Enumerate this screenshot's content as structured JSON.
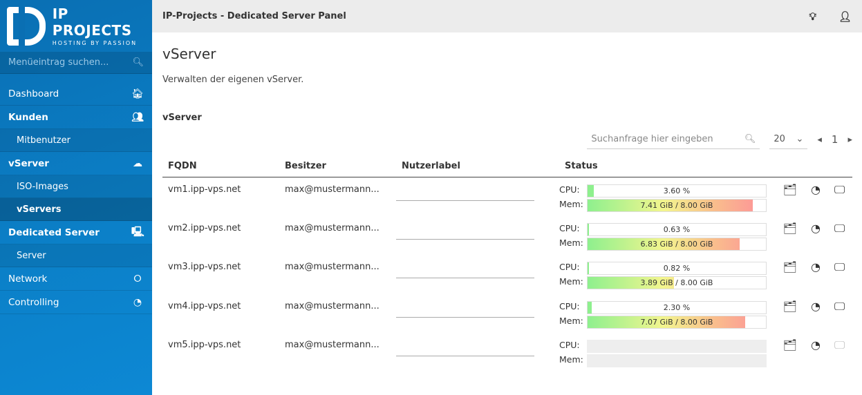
{
  "brand": {
    "name": "IP PROJECTS",
    "tagline": "HOSTING BY PASSION"
  },
  "sidebar": {
    "search_placeholder": "Menüeintrag suchen...",
    "items": [
      {
        "label": "Dashboard",
        "icon": "home-icon",
        "type": "b0"
      },
      {
        "label": "Kunden",
        "icon": "users-icon",
        "type": "b"
      },
      {
        "label": "Mitbenutzer",
        "type": "sub"
      },
      {
        "label": "vServer",
        "icon": "cloud-icon",
        "type": "b"
      },
      {
        "label": "ISO-Images",
        "type": "sub"
      },
      {
        "label": "vServers",
        "type": "act"
      },
      {
        "label": "Dedicated Server",
        "icon": "server-icon",
        "type": "b"
      },
      {
        "label": "Server",
        "type": "sub"
      },
      {
        "label": "Network",
        "icon": "share-icon",
        "type": "b0"
      },
      {
        "label": "Controlling",
        "icon": "gauge-icon",
        "type": "b0"
      }
    ]
  },
  "header": {
    "title": "IP-Projects - Dedicated Server Panel"
  },
  "page": {
    "title": "vServer",
    "description": "Verwalten der eigenen vServer.",
    "section": "vServer"
  },
  "toolbar": {
    "search_placeholder": "Suchanfrage hier eingeben",
    "page_size": "20",
    "page": "1"
  },
  "table": {
    "columns": [
      "FQDN",
      "Besitzer",
      "Nutzerlabel",
      "Status"
    ],
    "cpu_label": "CPU:",
    "mem_label": "Mem:",
    "rows": [
      {
        "fqdn": "vm1.ipp-vps.net",
        "owner": "max@mustermann...",
        "label": "",
        "cpu": "3.60 %",
        "cpu_pct": 3.6,
        "mem": "7.41 GiB / 8.00 GiB",
        "mem_pct": 92.6,
        "online": true
      },
      {
        "fqdn": "vm2.ipp-vps.net",
        "owner": "max@mustermann...",
        "label": "",
        "cpu": "0.63 %",
        "cpu_pct": 0.63,
        "mem": "6.83 GiB / 8.00 GiB",
        "mem_pct": 85.4,
        "online": true
      },
      {
        "fqdn": "vm3.ipp-vps.net",
        "owner": "max@mustermann...",
        "label": "",
        "cpu": "0.82 %",
        "cpu_pct": 0.82,
        "mem": "3.89 GiB / 8.00 GiB",
        "mem_pct": 48.6,
        "online": true
      },
      {
        "fqdn": "vm4.ipp-vps.net",
        "owner": "max@mustermann...",
        "label": "",
        "cpu": "2.30 %",
        "cpu_pct": 2.3,
        "mem": "7.07 GiB / 8.00 GiB",
        "mem_pct": 88.4,
        "online": true
      },
      {
        "fqdn": "vm5.ipp-vps.net",
        "owner": "max@mustermann...",
        "label": "",
        "cpu": "",
        "cpu_pct": 0,
        "mem": "",
        "mem_pct": 0,
        "online": false
      }
    ]
  }
}
